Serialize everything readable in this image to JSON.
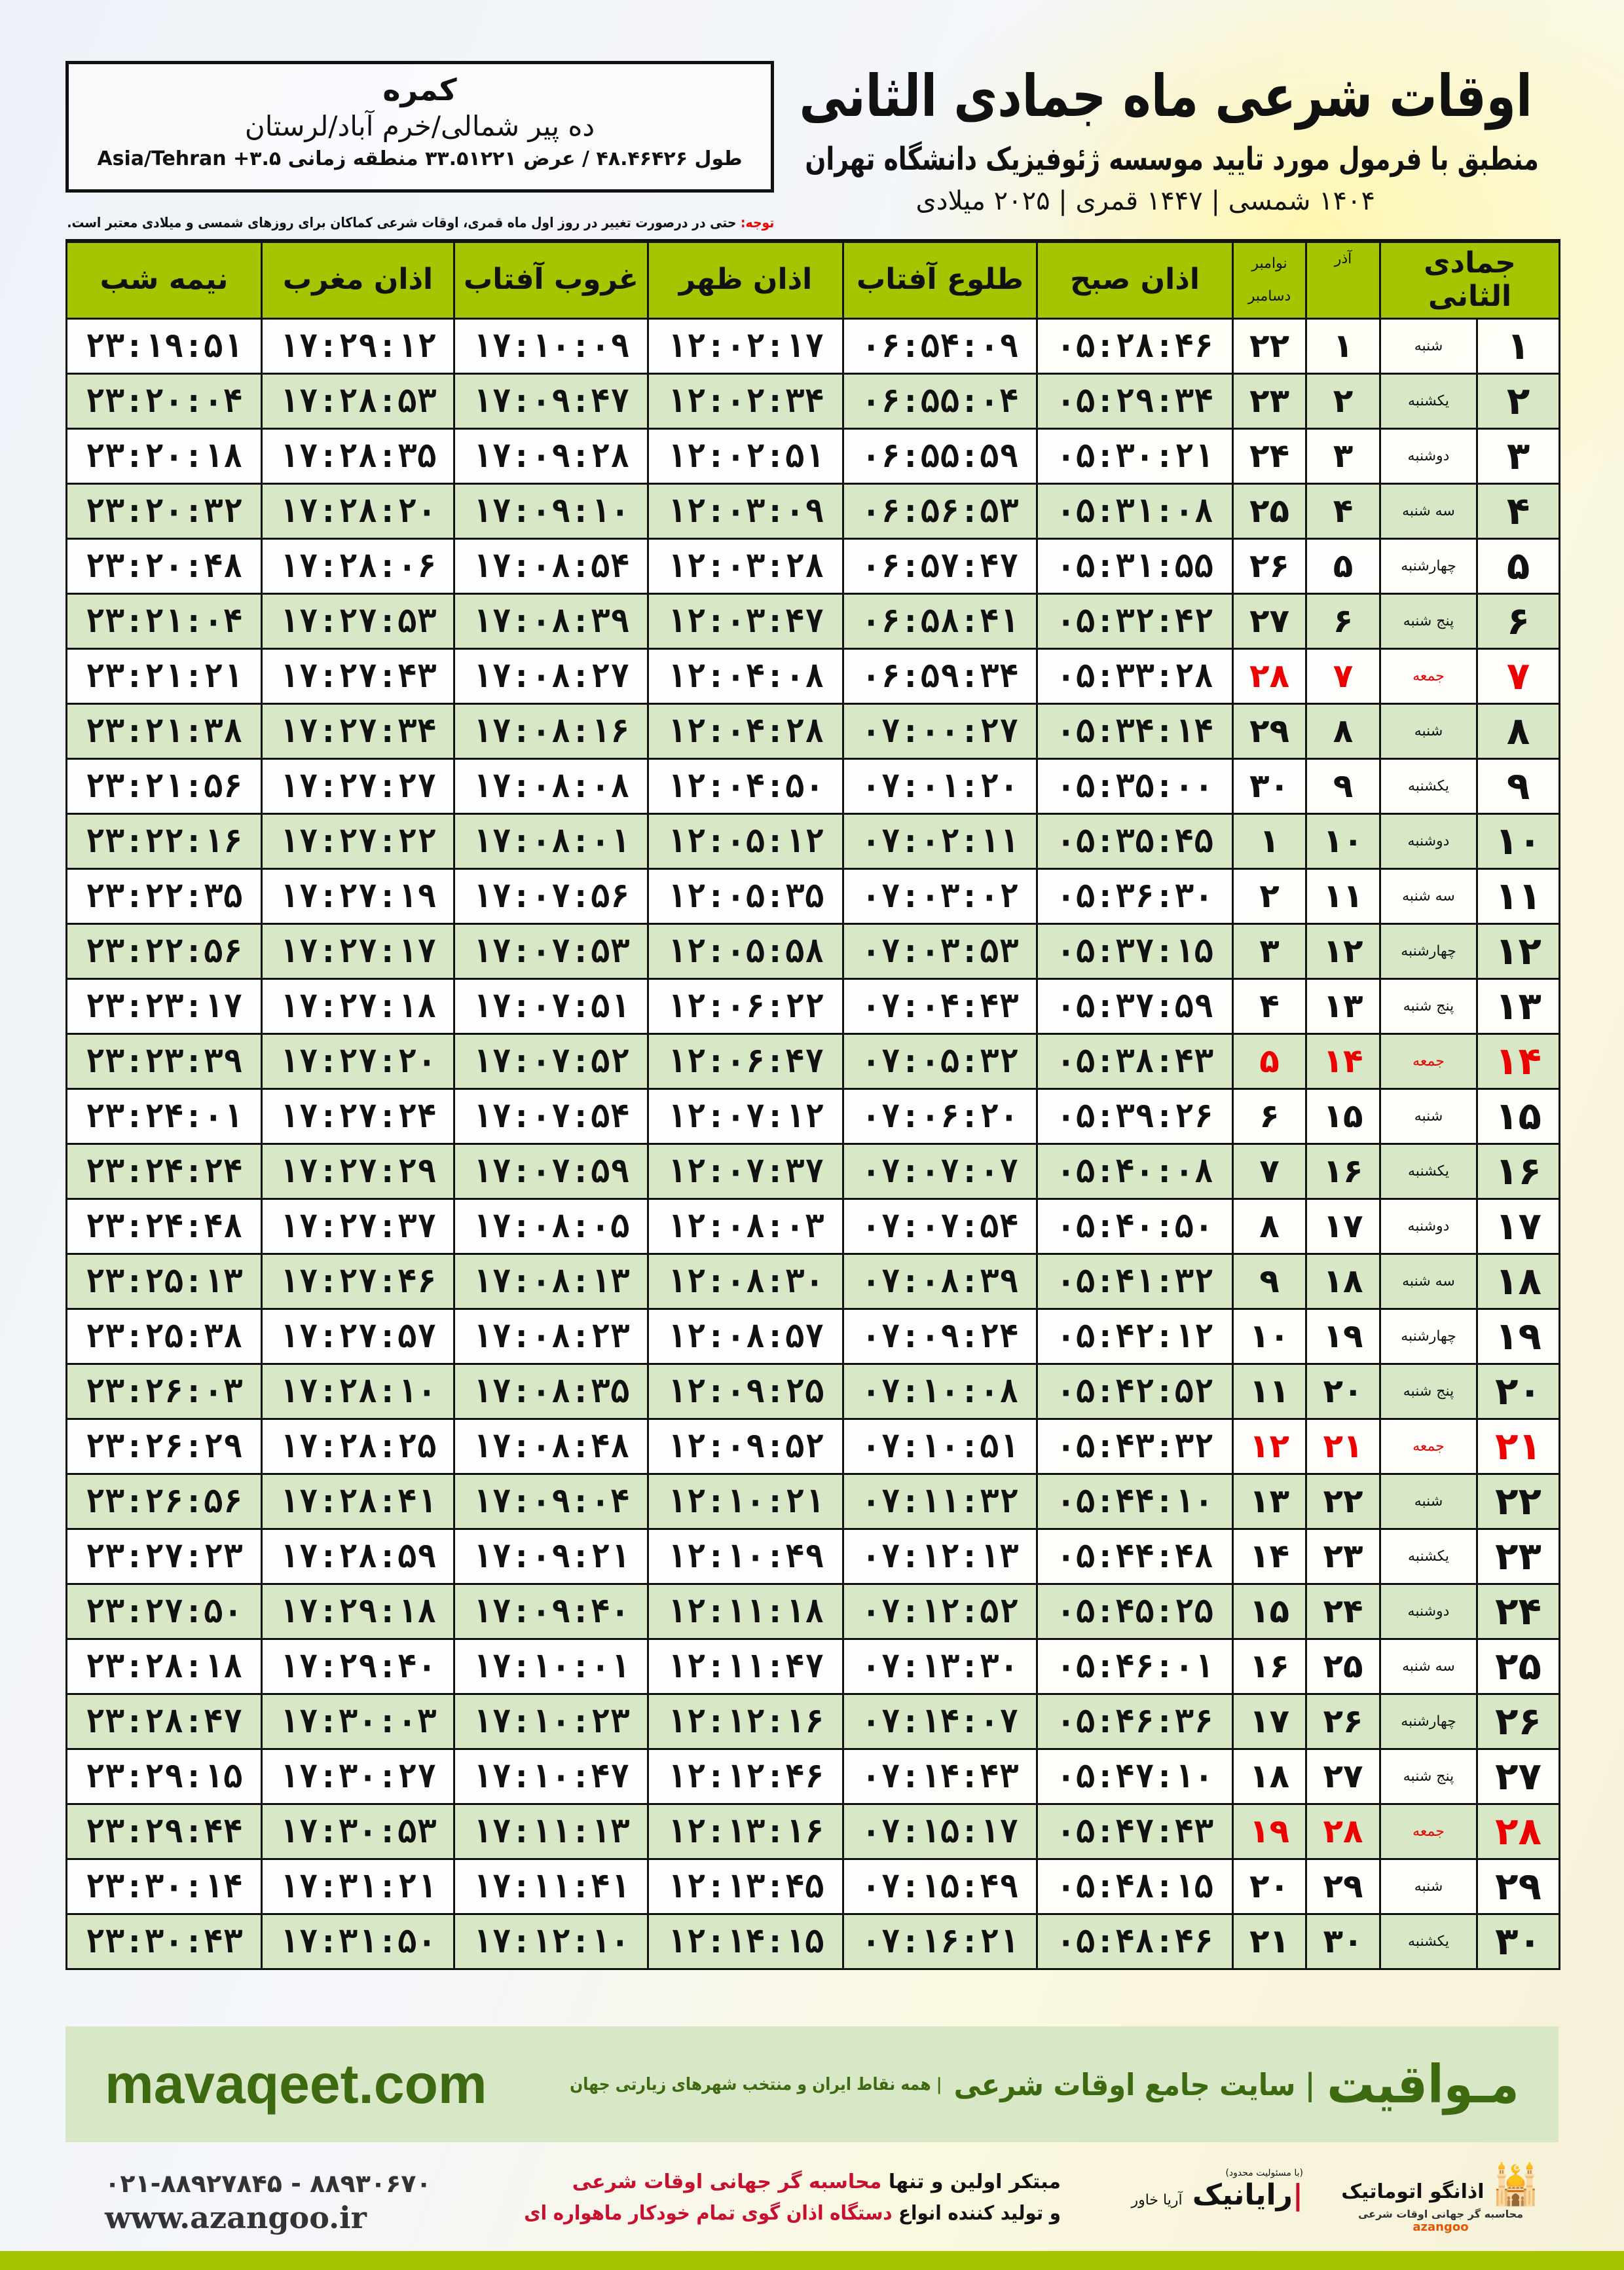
{
  "header": {
    "title": "اوقات شرعی ماه جمادی الثانی",
    "subtitle": "منطبق با فرمول مورد تایید موسسه ژئوفیزیک دانشگاه تهران",
    "years": "۱۴۰۴ شمسی | ۱۴۴۷ قمری | ۲۰۲۵ میلادی"
  },
  "location": {
    "name": "کمره",
    "path": "ده پیر شمالی/خرم آباد/لرستان",
    "coords": "طول ۴۸.۴۶۴۲۶ / عرض ۳۳.۵۱۲۲۱ منطقه زمانی ۳.۵+ Asia/Tehran"
  },
  "note": {
    "label": "توجه:",
    "text": " حتی در درصورت تغییر در روز اول ماه قمری، اوقات شرعی کماکان برای روزهای شمسی و میلادی معتبر است."
  },
  "columns": {
    "hijri": "جمادی الثانی",
    "azar": "آذر",
    "greg_top": "نوامبر",
    "greg_bottom": "دسامبر",
    "fajr": "اذان صبح",
    "sunrise": "طلوع آفتاب",
    "dhuhr": "اذان ظهر",
    "sunset": "غروب آفتاب",
    "maghrib": "اذان مغرب",
    "midnight": "نیمه شب"
  },
  "colors": {
    "header_green": "#a6c400",
    "row_green": "#d8e8c6",
    "friday_red": "#e00000"
  },
  "rows": [
    [
      "۱",
      "شنبه",
      "۱",
      "۲۲",
      "۰۵:۲۸:۴۶",
      "۰۶:۵۴:۰۹",
      "۱۲:۰۲:۱۷",
      "۱۷:۱۰:۰۹",
      "۱۷:۲۹:۱۲",
      "۲۳:۱۹:۵۱"
    ],
    [
      "۲",
      "یکشنبه",
      "۲",
      "۲۳",
      "۰۵:۲۹:۳۴",
      "۰۶:۵۵:۰۴",
      "۱۲:۰۲:۳۴",
      "۱۷:۰۹:۴۷",
      "۱۷:۲۸:۵۳",
      "۲۳:۲۰:۰۴"
    ],
    [
      "۳",
      "دوشنبه",
      "۳",
      "۲۴",
      "۰۵:۳۰:۲۱",
      "۰۶:۵۵:۵۹",
      "۱۲:۰۲:۵۱",
      "۱۷:۰۹:۲۸",
      "۱۷:۲۸:۳۵",
      "۲۳:۲۰:۱۸"
    ],
    [
      "۴",
      "سه شنبه",
      "۴",
      "۲۵",
      "۰۵:۳۱:۰۸",
      "۰۶:۵۶:۵۳",
      "۱۲:۰۳:۰۹",
      "۱۷:۰۹:۱۰",
      "۱۷:۲۸:۲۰",
      "۲۳:۲۰:۳۲"
    ],
    [
      "۵",
      "چهارشنبه",
      "۵",
      "۲۶",
      "۰۵:۳۱:۵۵",
      "۰۶:۵۷:۴۷",
      "۱۲:۰۳:۲۸",
      "۱۷:۰۸:۵۴",
      "۱۷:۲۸:۰۶",
      "۲۳:۲۰:۴۸"
    ],
    [
      "۶",
      "پنج شنبه",
      "۶",
      "۲۷",
      "۰۵:۳۲:۴۲",
      "۰۶:۵۸:۴۱",
      "۱۲:۰۳:۴۷",
      "۱۷:۰۸:۳۹",
      "۱۷:۲۷:۵۳",
      "۲۳:۲۱:۰۴"
    ],
    [
      "۷",
      "جمعه",
      "۷",
      "۲۸",
      "۰۵:۳۳:۲۸",
      "۰۶:۵۹:۳۴",
      "۱۲:۰۴:۰۸",
      "۱۷:۰۸:۲۷",
      "۱۷:۲۷:۴۳",
      "۲۳:۲۱:۲۱"
    ],
    [
      "۸",
      "شنبه",
      "۸",
      "۲۹",
      "۰۵:۳۴:۱۴",
      "۰۷:۰۰:۲۷",
      "۱۲:۰۴:۲۸",
      "۱۷:۰۸:۱۶",
      "۱۷:۲۷:۳۴",
      "۲۳:۲۱:۳۸"
    ],
    [
      "۹",
      "یکشنبه",
      "۹",
      "۳۰",
      "۰۵:۳۵:۰۰",
      "۰۷:۰۱:۲۰",
      "۱۲:۰۴:۵۰",
      "۱۷:۰۸:۰۸",
      "۱۷:۲۷:۲۷",
      "۲۳:۲۱:۵۶"
    ],
    [
      "۱۰",
      "دوشنبه",
      "۱۰",
      "۱",
      "۰۵:۳۵:۴۵",
      "۰۷:۰۲:۱۱",
      "۱۲:۰۵:۱۲",
      "۱۷:۰۸:۰۱",
      "۱۷:۲۷:۲۲",
      "۲۳:۲۲:۱۶"
    ],
    [
      "۱۱",
      "سه شنبه",
      "۱۱",
      "۲",
      "۰۵:۳۶:۳۰",
      "۰۷:۰۳:۰۲",
      "۱۲:۰۵:۳۵",
      "۱۷:۰۷:۵۶",
      "۱۷:۲۷:۱۹",
      "۲۳:۲۲:۳۵"
    ],
    [
      "۱۲",
      "چهارشنبه",
      "۱۲",
      "۳",
      "۰۵:۳۷:۱۵",
      "۰۷:۰۳:۵۳",
      "۱۲:۰۵:۵۸",
      "۱۷:۰۷:۵۳",
      "۱۷:۲۷:۱۷",
      "۲۳:۲۲:۵۶"
    ],
    [
      "۱۳",
      "پنج شنبه",
      "۱۳",
      "۴",
      "۰۵:۳۷:۵۹",
      "۰۷:۰۴:۴۳",
      "۱۲:۰۶:۲۲",
      "۱۷:۰۷:۵۱",
      "۱۷:۲۷:۱۸",
      "۲۳:۲۳:۱۷"
    ],
    [
      "۱۴",
      "جمعه",
      "۱۴",
      "۵",
      "۰۵:۳۸:۴۳",
      "۰۷:۰۵:۳۲",
      "۱۲:۰۶:۴۷",
      "۱۷:۰۷:۵۲",
      "۱۷:۲۷:۲۰",
      "۲۳:۲۳:۳۹"
    ],
    [
      "۱۵",
      "شنبه",
      "۱۵",
      "۶",
      "۰۵:۳۹:۲۶",
      "۰۷:۰۶:۲۰",
      "۱۲:۰۷:۱۲",
      "۱۷:۰۷:۵۴",
      "۱۷:۲۷:۲۴",
      "۲۳:۲۴:۰۱"
    ],
    [
      "۱۶",
      "یکشنبه",
      "۱۶",
      "۷",
      "۰۵:۴۰:۰۸",
      "۰۷:۰۷:۰۷",
      "۱۲:۰۷:۳۷",
      "۱۷:۰۷:۵۹",
      "۱۷:۲۷:۲۹",
      "۲۳:۲۴:۲۴"
    ],
    [
      "۱۷",
      "دوشنبه",
      "۱۷",
      "۸",
      "۰۵:۴۰:۵۰",
      "۰۷:۰۷:۵۴",
      "۱۲:۰۸:۰۳",
      "۱۷:۰۸:۰۵",
      "۱۷:۲۷:۳۷",
      "۲۳:۲۴:۴۸"
    ],
    [
      "۱۸",
      "سه شنبه",
      "۱۸",
      "۹",
      "۰۵:۴۱:۳۲",
      "۰۷:۰۸:۳۹",
      "۱۲:۰۸:۳۰",
      "۱۷:۰۸:۱۳",
      "۱۷:۲۷:۴۶",
      "۲۳:۲۵:۱۳"
    ],
    [
      "۱۹",
      "چهارشنبه",
      "۱۹",
      "۱۰",
      "۰۵:۴۲:۱۲",
      "۰۷:۰۹:۲۴",
      "۱۲:۰۸:۵۷",
      "۱۷:۰۸:۲۳",
      "۱۷:۲۷:۵۷",
      "۲۳:۲۵:۳۸"
    ],
    [
      "۲۰",
      "پنج شنبه",
      "۲۰",
      "۱۱",
      "۰۵:۴۲:۵۲",
      "۰۷:۱۰:۰۸",
      "۱۲:۰۹:۲۵",
      "۱۷:۰۸:۳۵",
      "۱۷:۲۸:۱۰",
      "۲۳:۲۶:۰۳"
    ],
    [
      "۲۱",
      "جمعه",
      "۲۱",
      "۱۲",
      "۰۵:۴۳:۳۲",
      "۰۷:۱۰:۵۱",
      "۱۲:۰۹:۵۲",
      "۱۷:۰۸:۴۸",
      "۱۷:۲۸:۲۵",
      "۲۳:۲۶:۲۹"
    ],
    [
      "۲۲",
      "شنبه",
      "۲۲",
      "۱۳",
      "۰۵:۴۴:۱۰",
      "۰۷:۱۱:۳۲",
      "۱۲:۱۰:۲۱",
      "۱۷:۰۹:۰۴",
      "۱۷:۲۸:۴۱",
      "۲۳:۲۶:۵۶"
    ],
    [
      "۲۳",
      "یکشنبه",
      "۲۳",
      "۱۴",
      "۰۵:۴۴:۴۸",
      "۰۷:۱۲:۱۳",
      "۱۲:۱۰:۴۹",
      "۱۷:۰۹:۲۱",
      "۱۷:۲۸:۵۹",
      "۲۳:۲۷:۲۳"
    ],
    [
      "۲۴",
      "دوشنبه",
      "۲۴",
      "۱۵",
      "۰۵:۴۵:۲۵",
      "۰۷:۱۲:۵۲",
      "۱۲:۱۱:۱۸",
      "۱۷:۰۹:۴۰",
      "۱۷:۲۹:۱۸",
      "۲۳:۲۷:۵۰"
    ],
    [
      "۲۵",
      "سه شنبه",
      "۲۵",
      "۱۶",
      "۰۵:۴۶:۰۱",
      "۰۷:۱۳:۳۰",
      "۱۲:۱۱:۴۷",
      "۱۷:۱۰:۰۱",
      "۱۷:۲۹:۴۰",
      "۲۳:۲۸:۱۸"
    ],
    [
      "۲۶",
      "چهارشنبه",
      "۲۶",
      "۱۷",
      "۰۵:۴۶:۳۶",
      "۰۷:۱۴:۰۷",
      "۱۲:۱۲:۱۶",
      "۱۷:۱۰:۲۳",
      "۱۷:۳۰:۰۳",
      "۲۳:۲۸:۴۷"
    ],
    [
      "۲۷",
      "پنج شنبه",
      "۲۷",
      "۱۸",
      "۰۵:۴۷:۱۰",
      "۰۷:۱۴:۴۳",
      "۱۲:۱۲:۴۶",
      "۱۷:۱۰:۴۷",
      "۱۷:۳۰:۲۷",
      "۲۳:۲۹:۱۵"
    ],
    [
      "۲۸",
      "جمعه",
      "۲۸",
      "۱۹",
      "۰۵:۴۷:۴۳",
      "۰۷:۱۵:۱۷",
      "۱۲:۱۳:۱۶",
      "۱۷:۱۱:۱۳",
      "۱۷:۳۰:۵۳",
      "۲۳:۲۹:۴۴"
    ],
    [
      "۲۹",
      "شنبه",
      "۲۹",
      "۲۰",
      "۰۵:۴۸:۱۵",
      "۰۷:۱۵:۴۹",
      "۱۲:۱۳:۴۵",
      "۱۷:۱۱:۴۱",
      "۱۷:۳۱:۲۱",
      "۲۳:۳۰:۱۴"
    ],
    [
      "۳۰",
      "یکشنبه",
      "۳۰",
      "۲۱",
      "۰۵:۴۸:۴۶",
      "۰۷:۱۶:۲۱",
      "۱۲:۱۴:۱۵",
      "۱۷:۱۲:۱۰",
      "۱۷:۳۱:۵۰",
      "۲۳:۳۰:۴۳"
    ]
  ],
  "banner": {
    "logo": "مـواقیت",
    "slogan": "| سایت جامع اوقات شرعی",
    "sub": "| همه نقاط ایران و منتخب شهرهای زیارتی جهان",
    "site": "mavaqeet.com"
  },
  "footer": {
    "logo1": "اذانگو اتوماتیک",
    "logo1_sub": "محاسبه گر جهانی اوقات شرعی",
    "logo1_en": "azangoo",
    "logo2": "رایانیک",
    "logo2_sub": "آریا خاور",
    "logo2_tag": "(با مسئولیت محدود)",
    "line1_a": "مبتکر اولین و تنها ",
    "line1_b": "محاسبه گر جهانی اوقات شرعی",
    "line2_a": "و تولید کننده انواع ",
    "line2_b": "دستگاه اذان گوی تمام خودکار ماهواره ای",
    "phone": "۰۲۱-۸۸۹۲۷۸۴۵ - ۸۸۹۳۰۶۷۰",
    "web": "www.azangoo.ir"
  }
}
